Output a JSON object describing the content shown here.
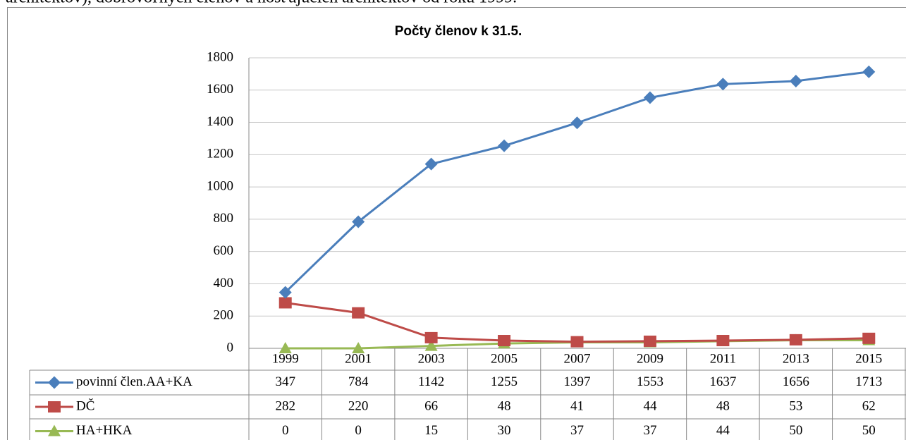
{
  "page_text": "architektov), dobrovoľných členov a hosťujúcich architektov od roku 1999.",
  "chart_data": {
    "type": "line",
    "title": "Počty členov k 31.5.",
    "categories": [
      "1999",
      "2001",
      "2003",
      "2005",
      "2007",
      "2009",
      "2011",
      "2013",
      "2015"
    ],
    "series": [
      {
        "name": "povinní člen.AA+KA",
        "color": "#4a7ebb",
        "marker": "diamond",
        "values": [
          347,
          784,
          1142,
          1255,
          1397,
          1553,
          1637,
          1656,
          1713
        ]
      },
      {
        "name": "DČ",
        "color": "#be4b48",
        "marker": "square",
        "values": [
          282,
          220,
          66,
          48,
          41,
          44,
          48,
          53,
          62
        ]
      },
      {
        "name": "HA+HKA",
        "color": "#98b954",
        "marker": "triangle",
        "values": [
          0,
          0,
          15,
          30,
          37,
          37,
          44,
          50,
          50
        ]
      }
    ],
    "ylim": [
      0,
      1800
    ],
    "yticks": [
      0,
      200,
      400,
      600,
      800,
      1000,
      1200,
      1400,
      1600,
      1800
    ],
    "grid": true,
    "data_table": true
  }
}
